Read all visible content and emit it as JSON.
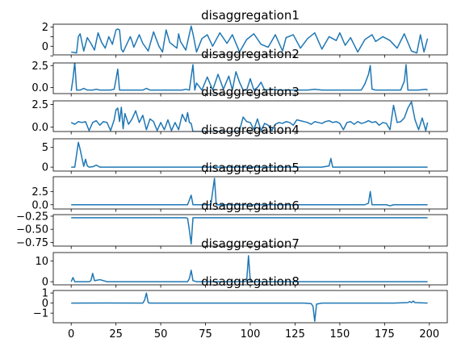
{
  "chart_data": [
    {
      "type": "line",
      "title": "disaggregation1",
      "xlim": [
        -10,
        210
      ],
      "ylim": [
        -0.9,
        2.3
      ],
      "yticks": [
        -1,
        0,
        1,
        2
      ],
      "yticklabels": [
        "",
        "0",
        "",
        "2"
      ],
      "series": [
        {
          "color": "#1f77b4",
          "x": [
            0,
            3,
            4,
            5,
            7,
            9,
            11,
            13,
            15,
            17,
            19,
            21,
            23,
            25,
            26,
            27,
            28,
            29,
            30,
            33,
            34,
            35,
            38,
            40,
            43,
            46,
            49,
            51,
            53,
            55,
            59,
            60,
            61,
            62,
            64,
            67,
            68,
            70,
            73,
            76,
            79,
            83,
            87,
            90,
            94,
            98,
            102,
            106,
            110,
            114,
            118,
            120,
            124,
            128,
            132,
            136,
            140,
            144,
            148,
            150,
            153,
            156,
            160,
            164,
            168,
            170,
            174,
            178,
            182,
            186,
            190,
            193,
            195,
            197,
            199
          ],
          "y": [
            -0.6,
            -0.7,
            1.0,
            1.3,
            -0.5,
            0.9,
            0.3,
            -0.4,
            1.4,
            0.4,
            -0.2,
            1.0,
            0.2,
            1.7,
            1.8,
            1.7,
            -0.3,
            -0.6,
            -0.2,
            1.0,
            0.5,
            -0.1,
            1.2,
            0.3,
            -0.5,
            1.5,
            0.0,
            -0.6,
            1.7,
            0.4,
            -0.2,
            1.3,
            0.5,
            0.2,
            -0.4,
            2.1,
            1.3,
            -0.6,
            0.8,
            1.2,
            0.0,
            1.4,
            0.3,
            1.2,
            -0.6,
            0.7,
            1.3,
            0.2,
            -0.1,
            1.2,
            -0.5,
            0.9,
            1.2,
            -0.2,
            0.8,
            1.4,
            -0.3,
            1.0,
            0.6,
            1.4,
            0.1,
            0.9,
            -0.6,
            0.7,
            1.2,
            0.5,
            1.0,
            0.6,
            -0.2,
            1.3,
            -0.5,
            -0.7,
            1.2,
            -0.6,
            0.8
          ]
        }
      ]
    },
    {
      "type": "line",
      "title": "disaggregation2",
      "xlim": [
        -10,
        210
      ],
      "ylim": [
        -0.7,
        2.8
      ],
      "yticks": [
        0,
        2.5
      ],
      "yticklabels": [
        "0.0",
        "2.5"
      ],
      "series": [
        {
          "color": "#1f77b4",
          "x": [
            0,
            1,
            2,
            3,
            5,
            7,
            9,
            12,
            14,
            16,
            18,
            20,
            22,
            24,
            25,
            26,
            27,
            30,
            35,
            40,
            42,
            43,
            44,
            48,
            50,
            55,
            58,
            60,
            62,
            64,
            66,
            67,
            68,
            69,
            70,
            73,
            76,
            79,
            82,
            85,
            88,
            90,
            92,
            94,
            96,
            98,
            100,
            102,
            104,
            106,
            108,
            112,
            116,
            120,
            124,
            128,
            132,
            136,
            140,
            144,
            148,
            150,
            154,
            158,
            162,
            164,
            166,
            167,
            168,
            170,
            174,
            178,
            180,
            184,
            186,
            187,
            188,
            190,
            194,
            198,
            199
          ],
          "y": [
            -0.4,
            1.0,
            2.9,
            -0.3,
            -0.3,
            -0.1,
            -0.3,
            -0.3,
            -0.2,
            -0.3,
            -0.3,
            -0.3,
            -0.3,
            -0.2,
            0.9,
            2.1,
            -0.3,
            -0.3,
            -0.3,
            -0.3,
            -0.1,
            -0.2,
            -0.3,
            -0.3,
            -0.3,
            -0.3,
            -0.3,
            -0.3,
            -0.3,
            -0.2,
            -0.3,
            1.2,
            2.6,
            -0.3,
            0.5,
            -0.3,
            1.2,
            -0.3,
            1.5,
            -0.2,
            1.3,
            -0.3,
            1.8,
            0.6,
            -0.3,
            -0.3,
            1.0,
            -0.3,
            0.0,
            0.6,
            -0.3,
            -0.2,
            -0.3,
            -0.3,
            -0.3,
            -0.3,
            -0.3,
            -0.2,
            -0.3,
            -0.3,
            -0.3,
            -0.3,
            -0.3,
            -0.3,
            -0.3,
            0.4,
            1.5,
            2.5,
            -0.2,
            -0.3,
            -0.3,
            -0.3,
            -0.3,
            -0.3,
            0.7,
            2.6,
            -0.3,
            -0.3,
            -0.3,
            -0.2,
            -0.3
          ]
        }
      ]
    },
    {
      "type": "line",
      "title": "disaggregation3",
      "xlim": [
        -10,
        210
      ],
      "ylim": [
        -0.5,
        2.9
      ],
      "yticks": [
        0,
        2.5
      ],
      "yticklabels": [
        "0.0",
        "2.5"
      ],
      "series": [
        {
          "color": "#1f77b4",
          "x": [
            0,
            2,
            4,
            6,
            8,
            10,
            12,
            14,
            16,
            18,
            20,
            22,
            24,
            25,
            26,
            27,
            28,
            29,
            30,
            32,
            34,
            36,
            38,
            40,
            42,
            44,
            46,
            48,
            50,
            52,
            54,
            56,
            58,
            60,
            62,
            64,
            65,
            66,
            67,
            68,
            70,
            72,
            74,
            76,
            78,
            80,
            82,
            84,
            86,
            88,
            90,
            92,
            94,
            96,
            98,
            100,
            102,
            104,
            106,
            108,
            110,
            112,
            114,
            116,
            118,
            120,
            122,
            124,
            126,
            128,
            130,
            132,
            134,
            136,
            138,
            140,
            142,
            144,
            146,
            148,
            150,
            152,
            154,
            156,
            158,
            160,
            162,
            164,
            166,
            168,
            170,
            172,
            174,
            176,
            178,
            180,
            182,
            184,
            186,
            188,
            190,
            192,
            194,
            196,
            198,
            199
          ],
          "y": [
            0.5,
            0.3,
            0.6,
            0.5,
            0.6,
            -0.4,
            0.5,
            0.7,
            0.2,
            0.6,
            0.5,
            -0.4,
            0.8,
            1.9,
            2.1,
            0.6,
            2.2,
            -0.2,
            1.5,
            0.3,
            0.9,
            1.8,
            0.5,
            1.3,
            -0.3,
            0.9,
            0.6,
            -0.4,
            0.5,
            -0.3,
            0.8,
            -0.4,
            0.5,
            -0.3,
            1.4,
            0.6,
            1.6,
            0.5,
            0.4,
            -0.5,
            -0.5,
            -0.5,
            -0.5,
            -0.5,
            -0.5,
            -0.5,
            -0.5,
            -0.5,
            -0.5,
            -0.5,
            -0.5,
            -0.5,
            -0.4,
            1.1,
            0.6,
            0.5,
            -0.3,
            0.9,
            -0.4,
            0.4,
            0.2,
            -0.4,
            0.3,
            0.5,
            0.4,
            0.6,
            0.5,
            0.2,
            0.8,
            0.7,
            0.6,
            0.5,
            0.3,
            0.6,
            0.5,
            0.4,
            0.6,
            0.7,
            0.5,
            0.6,
            0.4,
            -0.3,
            0.5,
            0.6,
            0.3,
            0.6,
            0.4,
            0.5,
            0.7,
            0.5,
            0.6,
            0.2,
            0.5,
            0.4,
            -0.3,
            2.4,
            0.5,
            0.6,
            1.0,
            2.1,
            2.8,
            0.8,
            -0.3,
            1.0,
            -0.4,
            0.5
          ]
        }
      ]
    },
    {
      "type": "line",
      "title": "disaggregation4",
      "xlim": [
        -10,
        210
      ],
      "ylim": [
        -1.0,
        7.2
      ],
      "yticks": [
        0,
        5
      ],
      "yticklabels": [
        "0",
        "5"
      ],
      "series": [
        {
          "color": "#1f77b4",
          "x": [
            0,
            2,
            4,
            5,
            7,
            8,
            9,
            10,
            12,
            14,
            16,
            18,
            20,
            30,
            40,
            50,
            60,
            70,
            80,
            90,
            100,
            110,
            120,
            130,
            140,
            144,
            145,
            146,
            148,
            150,
            160,
            170,
            180,
            190,
            199
          ],
          "y": [
            0,
            0,
            6.3,
            4.5,
            0.2,
            2.0,
            0.3,
            0.0,
            0.1,
            0.5,
            0.0,
            0.0,
            0.0,
            0.0,
            0.0,
            0.0,
            0.0,
            0.0,
            0.0,
            0.0,
            0.0,
            0.0,
            0.0,
            0.0,
            0.0,
            0.3,
            2.2,
            0.0,
            0.0,
            0.0,
            0.0,
            0.0,
            0.0,
            0.0,
            0.0
          ]
        }
      ]
    },
    {
      "type": "line",
      "title": "disaggregation5",
      "xlim": [
        -10,
        210
      ],
      "ylim": [
        -0.8,
        5.3
      ],
      "yticks": [
        0,
        2.5
      ],
      "yticklabels": [
        "0.0",
        "2.5"
      ],
      "series": [
        {
          "color": "#1f77b4",
          "x": [
            0,
            20,
            40,
            60,
            65,
            67,
            68,
            70,
            75,
            78,
            79,
            80,
            81,
            85,
            90,
            100,
            120,
            140,
            160,
            164,
            166,
            167,
            168,
            170,
            176,
            178,
            180,
            190,
            199
          ],
          "y": [
            0,
            0,
            0,
            0,
            0,
            1.8,
            0.0,
            0.0,
            0.0,
            0.0,
            2.5,
            5.0,
            0.0,
            0.0,
            0.0,
            0.0,
            0.0,
            0.0,
            0.0,
            0.0,
            0.3,
            2.5,
            0.0,
            0.0,
            0.0,
            -0.2,
            0.0,
            0.0,
            0.0
          ]
        }
      ]
    },
    {
      "type": "line",
      "title": "disaggregation6",
      "xlim": [
        -10,
        210
      ],
      "ylim": [
        -0.82,
        -0.22
      ],
      "yticks": [
        -0.25,
        -0.5,
        -0.75
      ],
      "yticklabels": [
        "−0.25",
        "−0.50",
        "−0.75"
      ],
      "series": [
        {
          "color": "#1f77b4",
          "x": [
            0,
            20,
            40,
            60,
            64,
            65,
            66,
            67,
            68,
            80,
            100,
            120,
            140,
            160,
            180,
            199
          ],
          "y": [
            -0.28,
            -0.28,
            -0.28,
            -0.28,
            -0.28,
            -0.29,
            -0.52,
            -0.78,
            -0.28,
            -0.28,
            -0.28,
            -0.28,
            -0.28,
            -0.28,
            -0.28,
            -0.28
          ]
        }
      ]
    },
    {
      "type": "line",
      "title": "disaggregation7",
      "xlim": [
        -10,
        210
      ],
      "ylim": [
        -1.5,
        14.0
      ],
      "yticks": [
        0,
        10
      ],
      "yticklabels": [
        "0",
        "10"
      ],
      "series": [
        {
          "color": "#1f77b4",
          "x": [
            0,
            1,
            2,
            3,
            6,
            10,
            11,
            12,
            13,
            16,
            20,
            30,
            40,
            50,
            60,
            65,
            66,
            67,
            68,
            70,
            80,
            90,
            97,
            98,
            99,
            100,
            101,
            110,
            120,
            130,
            140,
            150,
            160,
            170,
            180,
            190,
            199
          ],
          "y": [
            0,
            2.0,
            0.0,
            0.0,
            0.0,
            0.0,
            0.5,
            4.0,
            0.5,
            1.0,
            0.0,
            0.0,
            0.0,
            0.0,
            0.0,
            0.0,
            1.5,
            5.5,
            0.5,
            0.0,
            0.0,
            0.0,
            0.0,
            0.5,
            12.5,
            0.5,
            0.0,
            0.0,
            0.0,
            0.0,
            0.0,
            0.0,
            0.0,
            0.0,
            0.0,
            0.0,
            0.0
          ]
        }
      ]
    },
    {
      "type": "line",
      "title": "disaggregation8",
      "xlim": [
        -10,
        210
      ],
      "ylim": [
        -1.95,
        1.25
      ],
      "yticks": [
        1,
        0,
        -1
      ],
      "yticklabels": [
        "1",
        "0",
        "−1"
      ],
      "xticks": [
        0,
        25,
        50,
        75,
        100,
        125,
        150,
        175,
        200
      ],
      "xticklabels": [
        "0",
        "25",
        "50",
        "75",
        "100",
        "125",
        "150",
        "175",
        "200"
      ],
      "series": [
        {
          "color": "#1f77b4",
          "x": [
            0,
            20,
            40,
            41,
            42,
            43,
            44,
            60,
            80,
            100,
            120,
            130,
            134,
            135,
            136,
            137,
            140,
            160,
            180,
            188,
            189,
            190,
            191,
            192,
            199
          ],
          "y": [
            0,
            0.01,
            0.0,
            0.3,
            1.0,
            0.05,
            0.0,
            0.0,
            0.0,
            0.0,
            0.0,
            0.0,
            -0.05,
            -0.3,
            -1.8,
            -0.1,
            0.0,
            0.0,
            0.0,
            0.05,
            0.15,
            0.05,
            0.2,
            0.05,
            0.0
          ]
        }
      ]
    }
  ]
}
